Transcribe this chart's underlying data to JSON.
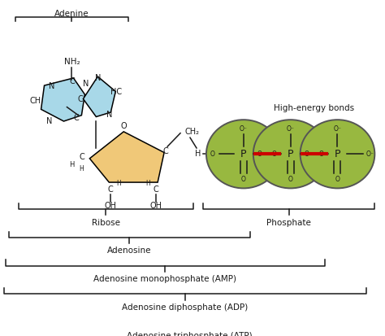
{
  "bg_color": "#ffffff",
  "adenine_color": "#a8d8e8",
  "ribose_color": "#f0c878",
  "phosphate_color": "#98b840",
  "high_energy_bond_color": "#cc0000",
  "text_color": "#1a1a1a",
  "lw": 1.1,
  "fs": 7.0,
  "labels": {
    "adenine": "Adenine",
    "nh2": "NH₂",
    "o_label": "O",
    "ch2": "CH₂",
    "ribose": "Ribose",
    "phosphate": "Phosphate",
    "adenosine": "Adenosine",
    "amp": "Adenosine monophosphate (AMP)",
    "adp": "Adenosine diphosphate (ADP)",
    "atp": "Adenosine triphosphate (ATP)",
    "high_energy": "High-energy bonds"
  }
}
